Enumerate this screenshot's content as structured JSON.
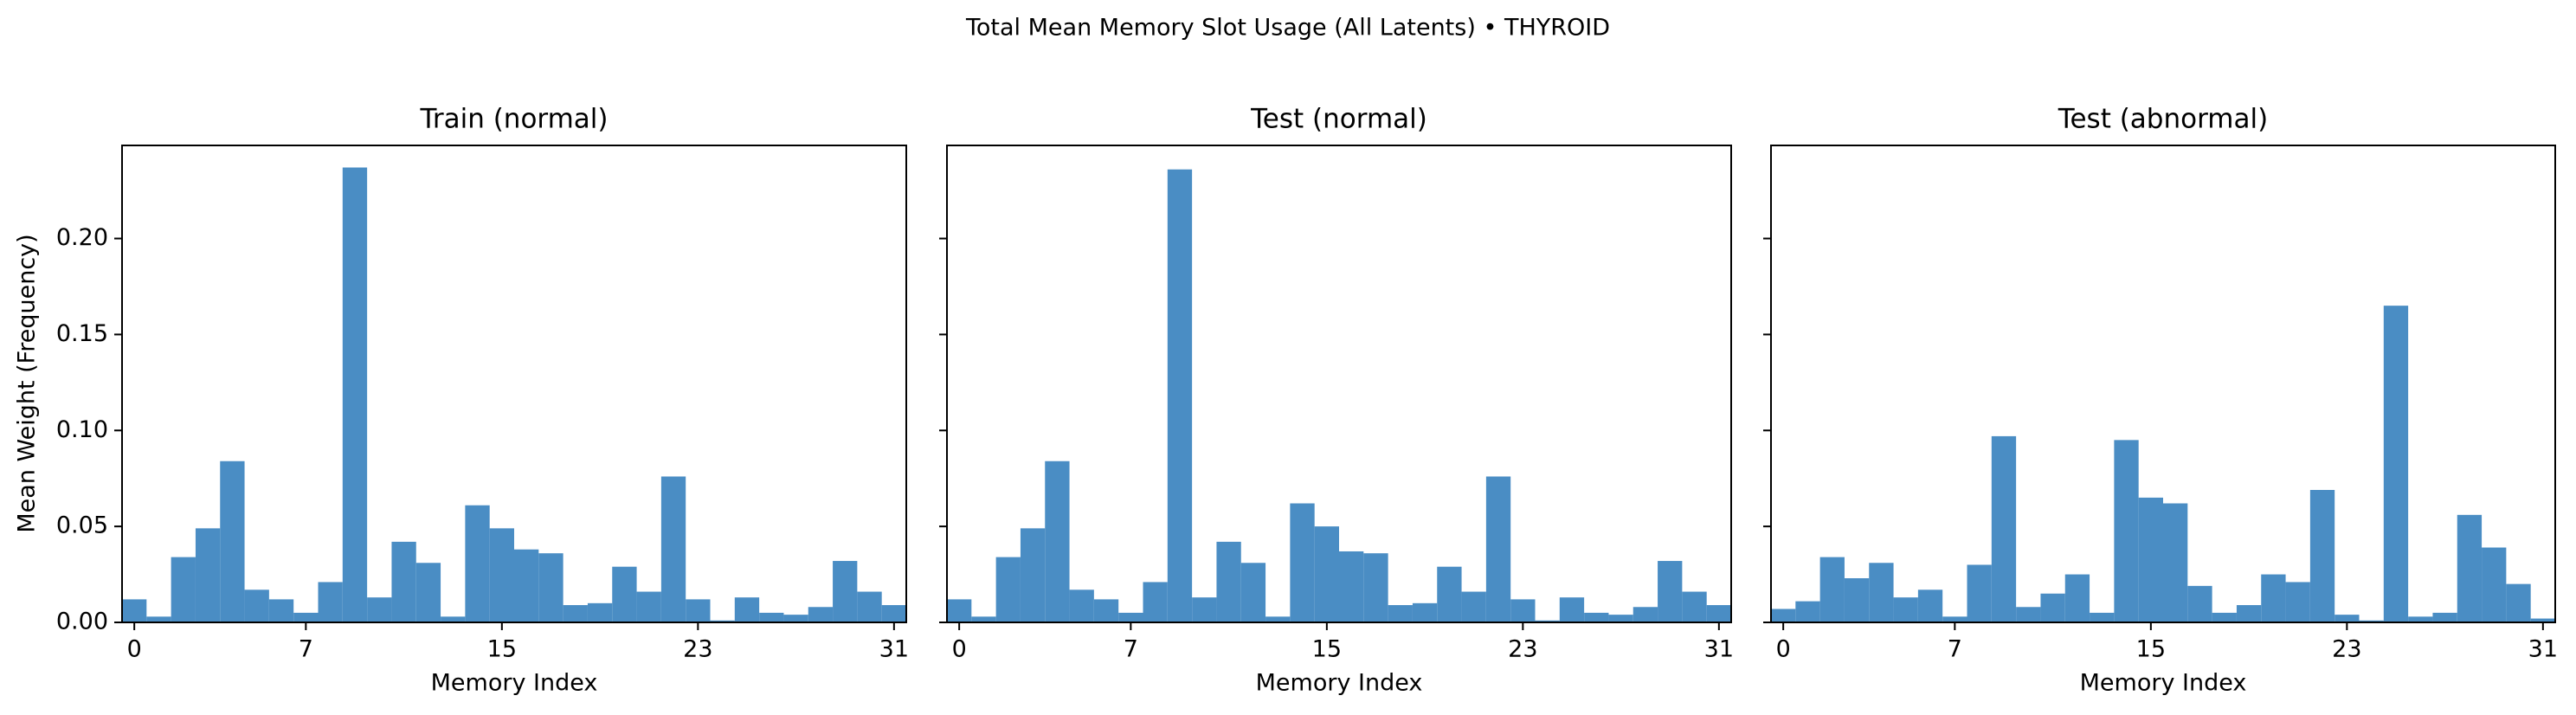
{
  "figure": {
    "suptitle": "Total Mean Memory Slot Usage (All Latents) • THYROID",
    "bar_color": "#4a8dc4"
  },
  "chart_data": [
    {
      "type": "bar",
      "title": "Train (normal)",
      "xlabel": "Memory Index",
      "ylabel": "Mean Weight (Frequency)",
      "categories": [
        0,
        1,
        2,
        3,
        4,
        5,
        6,
        7,
        8,
        9,
        10,
        11,
        12,
        13,
        14,
        15,
        16,
        17,
        18,
        19,
        20,
        21,
        22,
        23,
        24,
        25,
        26,
        27,
        28,
        29,
        30,
        31
      ],
      "values": [
        0.012,
        0.003,
        0.034,
        0.049,
        0.084,
        0.017,
        0.012,
        0.005,
        0.021,
        0.237,
        0.013,
        0.042,
        0.031,
        0.003,
        0.061,
        0.049,
        0.038,
        0.036,
        0.009,
        0.01,
        0.029,
        0.016,
        0.076,
        0.012,
        0.001,
        0.013,
        0.005,
        0.004,
        0.008,
        0.032,
        0.016,
        0.009
      ],
      "xticks": [
        0,
        7,
        15,
        23,
        31
      ],
      "yticks": [
        0.0,
        0.05,
        0.1,
        0.15,
        0.2
      ],
      "ytick_labels": [
        "0.00",
        "0.05",
        "0.10",
        "0.15",
        "0.20"
      ],
      "ylim": [
        0,
        0.2485
      ],
      "xlim": [
        -0.5,
        31.5
      ]
    },
    {
      "type": "bar",
      "title": "Test (normal)",
      "xlabel": "Memory Index",
      "ylabel": "",
      "categories": [
        0,
        1,
        2,
        3,
        4,
        5,
        6,
        7,
        8,
        9,
        10,
        11,
        12,
        13,
        14,
        15,
        16,
        17,
        18,
        19,
        20,
        21,
        22,
        23,
        24,
        25,
        26,
        27,
        28,
        29,
        30,
        31
      ],
      "values": [
        0.012,
        0.003,
        0.034,
        0.049,
        0.084,
        0.017,
        0.012,
        0.005,
        0.021,
        0.236,
        0.013,
        0.042,
        0.031,
        0.003,
        0.062,
        0.05,
        0.037,
        0.036,
        0.009,
        0.01,
        0.029,
        0.016,
        0.076,
        0.012,
        0.001,
        0.013,
        0.005,
        0.004,
        0.008,
        0.032,
        0.016,
        0.009
      ],
      "xticks": [
        0,
        7,
        15,
        23,
        31
      ],
      "yticks": [
        0.0,
        0.05,
        0.1,
        0.15,
        0.2
      ],
      "ytick_labels": [],
      "ylim": [
        0,
        0.2485
      ],
      "xlim": [
        -0.5,
        31.5
      ]
    },
    {
      "type": "bar",
      "title": "Test (abnormal)",
      "xlabel": "Memory Index",
      "ylabel": "",
      "categories": [
        0,
        1,
        2,
        3,
        4,
        5,
        6,
        7,
        8,
        9,
        10,
        11,
        12,
        13,
        14,
        15,
        16,
        17,
        18,
        19,
        20,
        21,
        22,
        23,
        24,
        25,
        26,
        27,
        28,
        29,
        30,
        31
      ],
      "values": [
        0.007,
        0.011,
        0.034,
        0.023,
        0.031,
        0.013,
        0.017,
        0.003,
        0.03,
        0.097,
        0.008,
        0.015,
        0.025,
        0.005,
        0.095,
        0.065,
        0.062,
        0.019,
        0.005,
        0.009,
        0.025,
        0.021,
        0.069,
        0.004,
        0.001,
        0.165,
        0.003,
        0.005,
        0.056,
        0.039,
        0.02,
        0.002
      ],
      "xticks": [
        0,
        7,
        15,
        23,
        31
      ],
      "yticks": [
        0.0,
        0.05,
        0.1,
        0.15,
        0.2
      ],
      "ytick_labels": [],
      "ylim": [
        0,
        0.2485
      ],
      "xlim": [
        -0.5,
        31.5
      ]
    }
  ]
}
